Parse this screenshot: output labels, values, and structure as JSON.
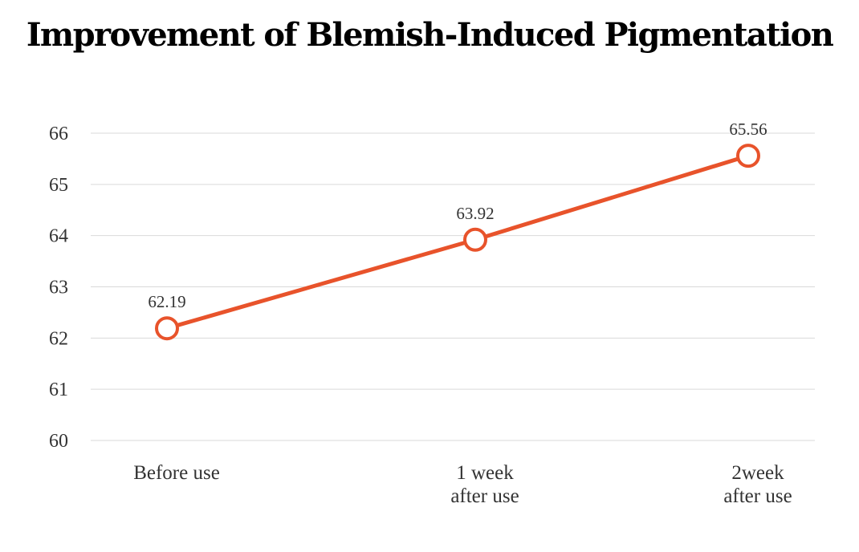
{
  "chart_data": {
    "type": "line",
    "title": "Improvement of Blemish-Induced Pigmentation",
    "xlabel": "",
    "ylabel": "",
    "categories": [
      [
        "Before use"
      ],
      [
        "1 week",
        "after use"
      ],
      [
        "2week",
        "after use"
      ]
    ],
    "series": [
      {
        "values": [
          62.19,
          63.92,
          65.56
        ],
        "data_labels": [
          "62.19",
          "63.92",
          "65.56"
        ],
        "color": "#e8532b"
      }
    ],
    "ylim": [
      60,
      66
    ],
    "yticks": [
      "60",
      "61",
      "62",
      "63",
      "64",
      "65",
      "66"
    ],
    "grid": true,
    "legend": "none"
  }
}
